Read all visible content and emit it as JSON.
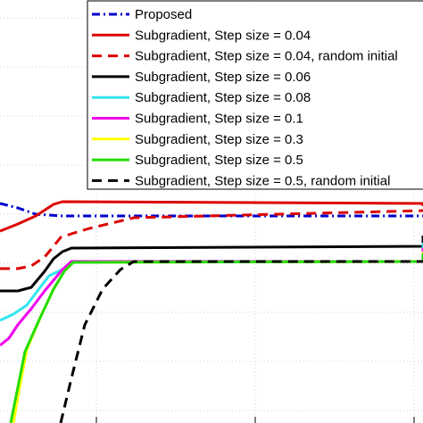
{
  "chart_data": {
    "type": "line",
    "title": "",
    "xlabel": "",
    "ylabel": "",
    "grid": true,
    "legend_position": "top-right",
    "xlim": [
      0,
      474
    ],
    "ylim": [
      0,
      474
    ],
    "series": [
      {
        "name": "Proposed",
        "color": "#0000cc",
        "dash": "dashdot",
        "points": [
          [
            0,
            246
          ],
          [
            20,
            241
          ],
          [
            40,
            234
          ],
          [
            70,
            232
          ],
          [
            474,
            232
          ]
        ]
      },
      {
        "name": "Subgradient, Step size = 0.04",
        "color": "#dd0000",
        "dash": "solid",
        "points": [
          [
            0,
            215
          ],
          [
            20,
            223
          ],
          [
            40,
            232
          ],
          [
            60,
            245
          ],
          [
            70,
            248
          ],
          [
            474,
            246
          ],
          [
            474,
            243
          ]
        ]
      },
      {
        "name": "Subgradient, Step size = 0.04, random initial",
        "color": "#dd0000",
        "dash": "dashed",
        "points": [
          [
            0,
            173
          ],
          [
            20,
            173
          ],
          [
            35,
            176
          ],
          [
            50,
            186
          ],
          [
            60,
            198
          ],
          [
            68,
            208
          ],
          [
            80,
            212
          ],
          [
            100,
            218
          ],
          [
            150,
            230
          ],
          [
            474,
            238
          ]
        ]
      },
      {
        "name": "Subgradient, Step size = 0.06",
        "color": "#000000",
        "dash": "solid",
        "points": [
          [
            0,
            148
          ],
          [
            20,
            148
          ],
          [
            35,
            152
          ],
          [
            50,
            170
          ],
          [
            60,
            184
          ],
          [
            70,
            192
          ],
          [
            80,
            196
          ],
          [
            474,
            198
          ],
          [
            474,
            210
          ]
        ]
      },
      {
        "name": "Subgradient, Step size = 0.08",
        "color": "#33e5f2",
        "dash": "solid",
        "points": [
          [
            0,
            115
          ],
          [
            15,
            122
          ],
          [
            30,
            132
          ],
          [
            45,
            152
          ],
          [
            55,
            165
          ],
          [
            70,
            172
          ],
          [
            80,
            181
          ],
          [
            474,
            181
          ],
          [
            474,
            202
          ]
        ]
      },
      {
        "name": "Subgradient, Step size = 0.1",
        "color": "#ee00ee",
        "dash": "solid",
        "points": [
          [
            0,
            87
          ],
          [
            10,
            95
          ],
          [
            20,
            110
          ],
          [
            35,
            128
          ],
          [
            50,
            148
          ],
          [
            70,
            172
          ],
          [
            80,
            181
          ],
          [
            474,
            181
          ],
          [
            474,
            196
          ]
        ]
      },
      {
        "name": "Subgradient, Step size = 0.3",
        "color": "#ffff00",
        "dash": "solid",
        "points": [
          [
            15,
            0
          ],
          [
            22,
            40
          ],
          [
            30,
            82
          ],
          [
            45,
            118
          ],
          [
            60,
            150
          ],
          [
            72,
            170
          ],
          [
            82,
            180
          ],
          [
            474,
            181
          ],
          [
            474,
            192
          ]
        ]
      },
      {
        "name": "Subgradient, Step size = 0.5",
        "color": "#22dd00",
        "dash": "solid",
        "points": [
          [
            12,
            0
          ],
          [
            20,
            40
          ],
          [
            28,
            80
          ],
          [
            45,
            118
          ],
          [
            60,
            150
          ],
          [
            72,
            170
          ],
          [
            82,
            180
          ],
          [
            474,
            181
          ],
          [
            474,
            190
          ]
        ]
      },
      {
        "name": "Subgradient, Step size = 0.5, random initial",
        "color": "#000000",
        "dash": "dashed",
        "points": [
          [
            68,
            0
          ],
          [
            80,
            50
          ],
          [
            95,
            110
          ],
          [
            115,
            150
          ],
          [
            135,
            172
          ],
          [
            150,
            181
          ],
          [
            474,
            181
          ]
        ]
      }
    ]
  }
}
